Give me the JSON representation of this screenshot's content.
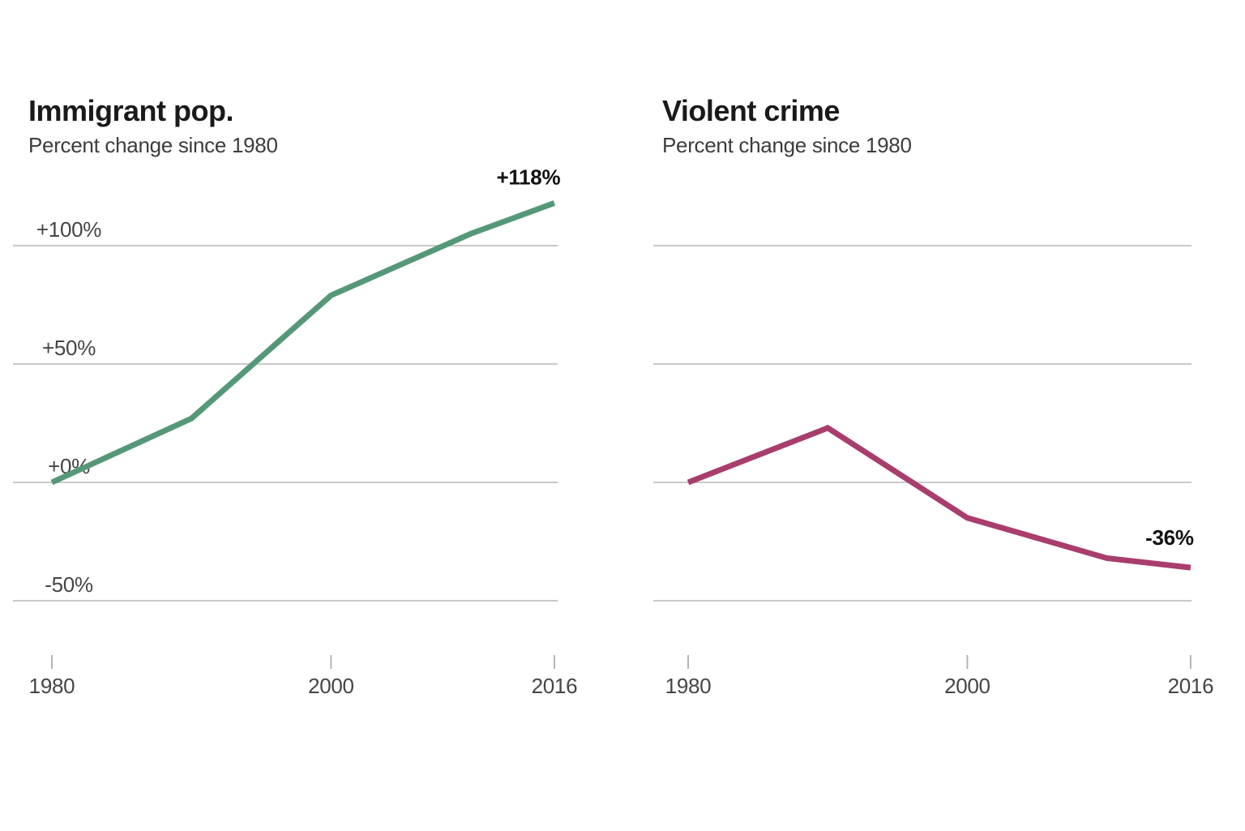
{
  "page": {
    "background": "#ffffff"
  },
  "colors": {
    "grid": "#c9c9c9",
    "tick": "#b5b5b5",
    "title": "#1a1a1a",
    "subtitle": "#3c3c3c",
    "axis_label": "#454545",
    "annotation": "#121212",
    "immigrant_line": "#559878",
    "crime_line": "#a93d6d"
  },
  "chart_data": [
    {
      "type": "line",
      "title": "Immigrant pop.",
      "subtitle": "Percent change since 1980",
      "x": [
        1980,
        1990,
        2000,
        2010,
        2016
      ],
      "values": [
        0,
        27,
        79,
        105,
        118
      ],
      "end_label": "+118%",
      "line_color": "#559878",
      "x_ticks": [
        {
          "value": 1980,
          "label": "1980"
        },
        {
          "value": 2000,
          "label": "2000"
        },
        {
          "value": 2016,
          "label": "2016"
        }
      ],
      "y_ticks": [
        {
          "value": 100,
          "label": "+100%"
        },
        {
          "value": 50,
          "label": "+50%"
        },
        {
          "value": 0,
          "label": "+0%"
        },
        {
          "value": -50,
          "label": "-50%"
        }
      ],
      "grid_values": [
        100,
        50,
        0,
        -50
      ],
      "xlim": [
        1980,
        2016
      ],
      "ylim": [
        -70,
        135
      ],
      "grid": "horizontal"
    },
    {
      "type": "line",
      "title": "Violent crime",
      "subtitle": "Percent change since 1980",
      "x": [
        1980,
        1990,
        2000,
        2010,
        2016
      ],
      "values": [
        0,
        23,
        -15,
        -32,
        -36
      ],
      "end_label": "-36%",
      "line_color": "#a93d6d",
      "x_ticks": [
        {
          "value": 1980,
          "label": "1980"
        },
        {
          "value": 2000,
          "label": "2000"
        },
        {
          "value": 2016,
          "label": "2016"
        }
      ],
      "y_ticks": [],
      "grid_values": [
        100,
        50,
        0,
        -50
      ],
      "xlim": [
        1980,
        2016
      ],
      "ylim": [
        -70,
        135
      ],
      "grid": "horizontal"
    }
  ]
}
